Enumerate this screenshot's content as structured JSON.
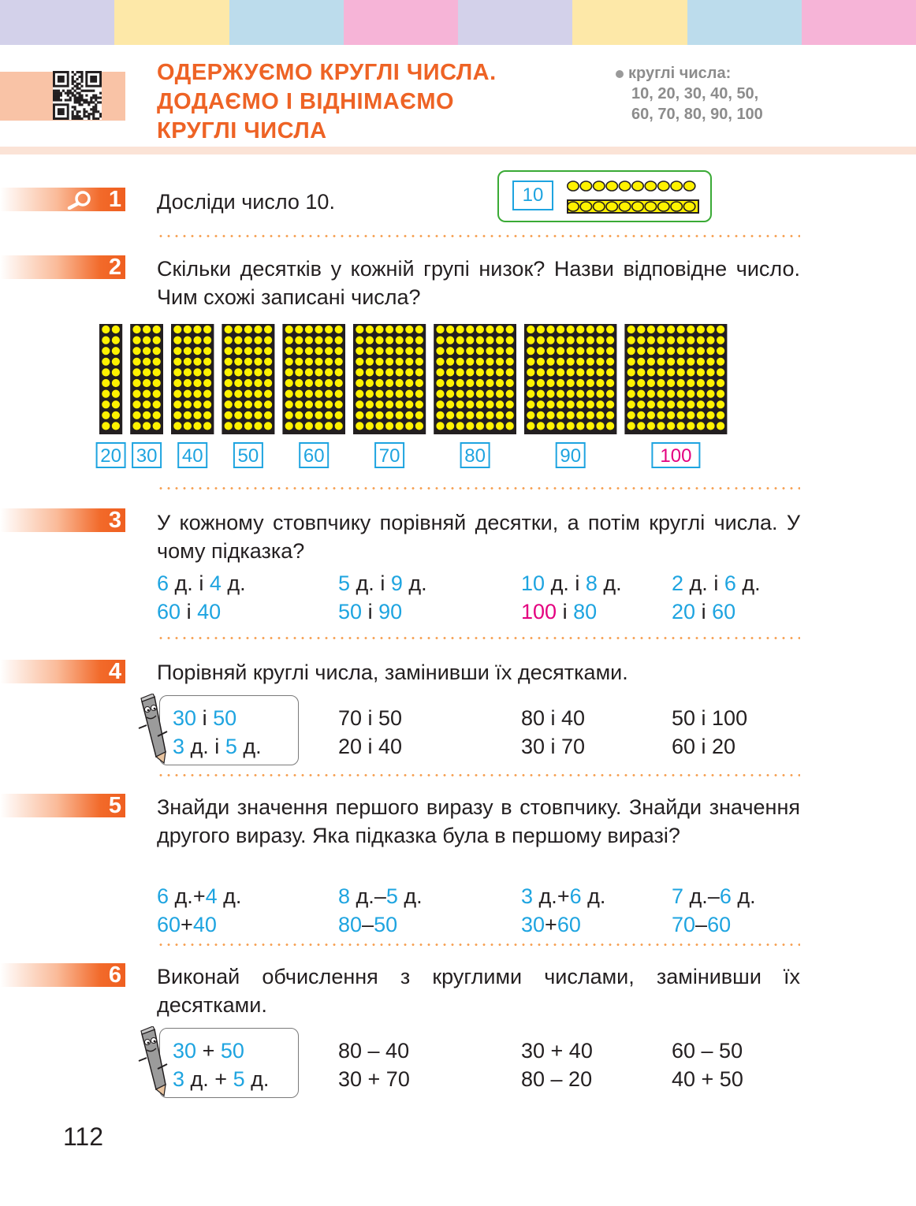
{
  "strip_colors": [
    "#d3d1ea",
    "#fde8a8",
    "#bcdcec",
    "#f6b4d7",
    "#d3d1ea",
    "#fde8a8",
    "#bcdcec",
    "#f6b4d7"
  ],
  "colors": {
    "accent": "#ee6325",
    "blue": "#1ea4e0",
    "pink": "#e4007f",
    "green": "#3aaa35",
    "bead_yellow": "#fff200"
  },
  "header": {
    "title_lines": [
      "ОДЕРЖУЄМО КРУГЛІ ЧИСЛА.",
      "ДОДАЄМО І ВІДНІМАЄМО",
      "КРУГЛІ ЧИСЛА"
    ],
    "note_lines": [
      "круглі числа:",
      "10, 20, 30, 40, 50,",
      "60, 70, 80, 90, 100"
    ],
    "qr_icon": "qr-code-icon"
  },
  "tasks": [
    {
      "num": "1",
      "icon": "magnifier-icon",
      "text": "Досліди число 10.",
      "box_number": "10"
    },
    {
      "num": "2",
      "text": "Скільки десятків у кожній групі низок? Назви відповідне число. Чим схожі записані числа?",
      "groups": [
        {
          "label": "20",
          "strings": 2
        },
        {
          "label": "30",
          "strings": 3
        },
        {
          "label": "40",
          "strings": 4
        },
        {
          "label": "50",
          "strings": 5
        },
        {
          "label": "60",
          "strings": 6
        },
        {
          "label": "70",
          "strings": 7
        },
        {
          "label": "80",
          "strings": 8
        },
        {
          "label": "90",
          "strings": 9
        },
        {
          "label": "100",
          "strings": 10
        }
      ]
    },
    {
      "num": "3",
      "text": "У кожному стовпчику порівняй десятки, а потім круглі числа. У чому підказка?",
      "columns": [
        {
          "a": "6",
          "b": "4",
          "r2a": "60",
          "r2b": "40",
          "r2a_pink": false
        },
        {
          "a": "5",
          "b": "9",
          "r2a": "50",
          "r2b": "90",
          "r2a_pink": false
        },
        {
          "a": "10",
          "b": "8",
          "r2a": "100",
          "r2b": "80",
          "r2a_pink": true
        },
        {
          "a": "2",
          "b": "6",
          "r2a": "20",
          "r2b": "60",
          "r2a_pink": false
        }
      ],
      "dec": "д.",
      "conj": "і"
    },
    {
      "num": "4",
      "text": "Порівняй круглі числа, замінивши їх десятками.",
      "example": {
        "row1_a": "30",
        "row1_op": "і",
        "row1_b": "50",
        "row2_a": "3",
        "row2_mid": "д. і",
        "row2_b": "5",
        "row2_end": "д."
      },
      "items": [
        [
          "70 і 50",
          "20 і 40"
        ],
        [
          "80 і 40",
          "30 і 70"
        ],
        [
          "50 і 100",
          "60 і 20"
        ]
      ]
    },
    {
      "num": "5",
      "text": "Знайди значення першого виразу в стовпчику. Знайди значення другого виразу. Яка підказка була в першому виразі?",
      "columns": [
        {
          "a": "6",
          "op": "+",
          "b": "4",
          "r2a": "60",
          "r2b": "40"
        },
        {
          "a": "8",
          "op": "–",
          "b": "5",
          "r2a": "80",
          "r2b": "50"
        },
        {
          "a": "3",
          "op": "+",
          "b": "6",
          "r2a": "30",
          "r2b": "60"
        },
        {
          "a": "7",
          "op": "–",
          "b": "6",
          "r2a": "70",
          "r2b": "60"
        }
      ],
      "dec": "д."
    },
    {
      "num": "6",
      "text": "Виконай обчислення з круглими числами, замінивши їх десятками.",
      "example": {
        "row1_a": "30",
        "row1_op": "+",
        "row1_b": "50",
        "row2_a": "3",
        "row2_mid": "д. +",
        "row2_b": "5",
        "row2_end": "д."
      },
      "items": [
        [
          "80 – 40",
          "30 + 70"
        ],
        [
          "30 + 40",
          "80 – 20"
        ],
        [
          "60 – 50",
          "40 + 50"
        ]
      ]
    }
  ],
  "page_number": "112",
  "mascot_icon": "pencil-mascot-icon"
}
